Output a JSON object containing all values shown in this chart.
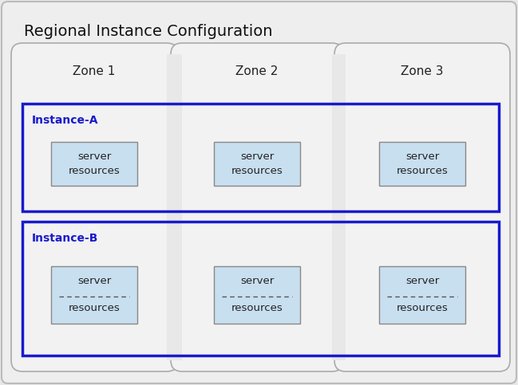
{
  "title": "Regional Instance Configuration",
  "title_fontsize": 14,
  "zones": [
    "Zone 1",
    "Zone 2",
    "Zone 3"
  ],
  "instances": [
    "Instance-A",
    "Instance-B"
  ],
  "bg_color": "#e8e8e8",
  "outer_bg": "#eeeeee",
  "outer_border": "#bbbbbb",
  "zone_bg": "#f2f2f2",
  "zone_border": "#aaaaaa",
  "gap_bg": "#d8d8d8",
  "instance_border": "#1a1acc",
  "instance_label_color": "#1a1acc",
  "server_box_bg": "#c8dff0",
  "server_box_border": "#888888",
  "server_text_color": "#222222",
  "dash_color": "#555555",
  "zone_label_fontsize": 11,
  "instance_label_fontsize": 10,
  "server_label_fontsize": 9.5
}
